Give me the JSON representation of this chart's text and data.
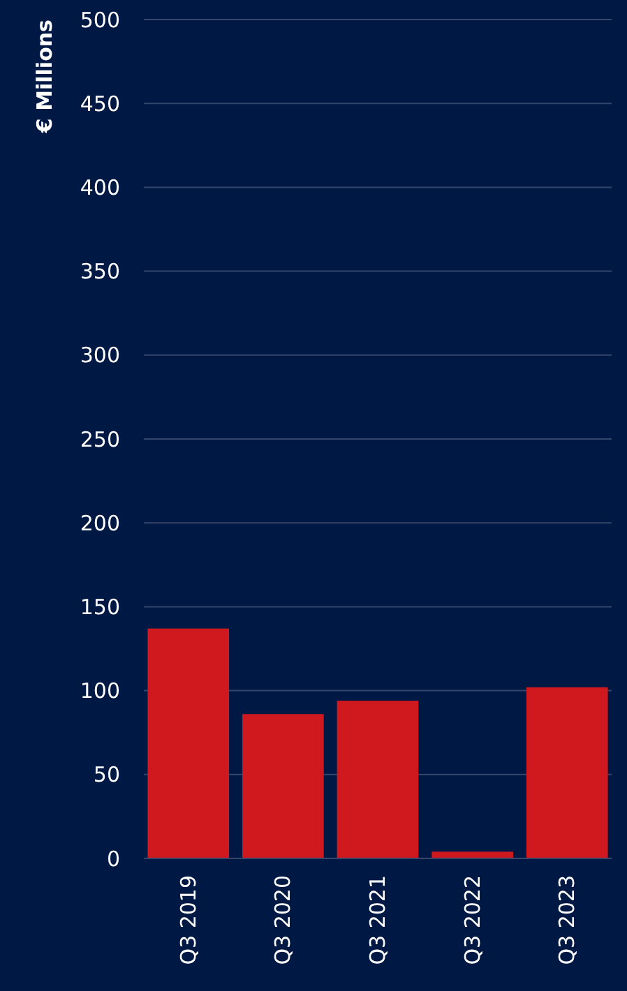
{
  "chart_data": {
    "type": "bar",
    "ylabel": "€ Millions",
    "categories": [
      "Q3 2019",
      "Q3 2020",
      "Q3 2021",
      "Q3 2022",
      "Q3 2023"
    ],
    "values": [
      137,
      86,
      94,
      4,
      102
    ],
    "color": "#d0191f",
    "ylim": [
      0,
      500
    ],
    "yticks": [
      0,
      50,
      100,
      150,
      200,
      250,
      300,
      350,
      400,
      450,
      500
    ],
    "grid": "y"
  }
}
